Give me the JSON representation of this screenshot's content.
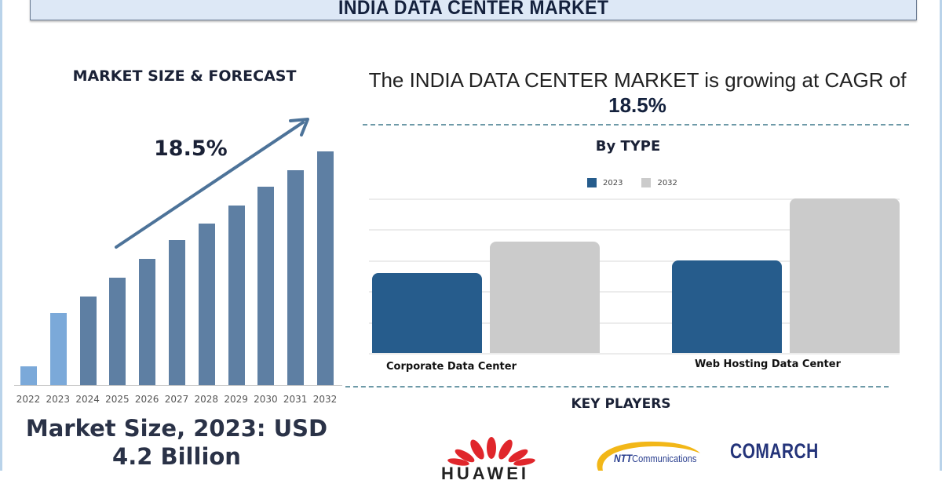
{
  "header": {
    "title": "INDIA DATA CENTER MARKET"
  },
  "left_panel": {
    "title": "MARKET SIZE & FORECAST",
    "cagr_label": "18.5%",
    "market_size_line1": "Market Size, 2023: USD",
    "market_size_line2": "4.2 Billion"
  },
  "right_panel": {
    "headline_prefix": "The INDIA DATA CENTER MARKET is growing at CAGR of ",
    "headline_value": "18.5%",
    "by_type_title": "By  TYPE",
    "legend": [
      {
        "label": "2023",
        "color": "#265c8c"
      },
      {
        "label": "2032",
        "color": "#cbcbcb"
      }
    ],
    "categories": [
      "Corporate Data Center",
      "Web Hosting Data Center"
    ],
    "key_players_title": "KEY PLAYERS",
    "key_players": [
      "HUAWEI",
      "NTT Communications",
      "COMARCH"
    ],
    "ntt_bold": "NTT",
    "ntt_rest": "Communications"
  },
  "colors": {
    "forecast_bar": "#5e7fa3",
    "historic_bar": "#7ba9d9",
    "arrow": "#4d7399",
    "series_2023": "#265c8c",
    "series_2032": "#cbcbcb",
    "header_bg": "#dde8f6"
  },
  "chart_data": [
    {
      "type": "bar",
      "title": "MARKET SIZE & FORECAST",
      "categories": [
        "2022",
        "2023",
        "2024",
        "2025",
        "2026",
        "2027",
        "2028",
        "2029",
        "2030",
        "2031",
        "2032"
      ],
      "values": [
        7,
        27,
        33,
        40,
        47,
        54,
        60,
        67,
        74,
        80,
        87
      ],
      "value_unit": "relative bar height (no y-axis shown)",
      "xlabel": "",
      "ylabel": "",
      "annotations": [
        "18.5% (CAGR arrow)",
        "Market Size, 2023: USD 4.2 Billion"
      ],
      "grid": false,
      "legend": null
    },
    {
      "type": "bar",
      "title": "By  TYPE",
      "categories": [
        "Corporate Data Center",
        "Web Hosting Data Center"
      ],
      "series": [
        {
          "name": "2023",
          "values": [
            2.6,
            3.0
          ]
        },
        {
          "name": "2032",
          "values": [
            3.6,
            5.0
          ]
        }
      ],
      "value_unit": "relative (gridline units, no axis labels shown)",
      "ylim": [
        0,
        5
      ],
      "grid": true,
      "legend_position": "top"
    }
  ]
}
